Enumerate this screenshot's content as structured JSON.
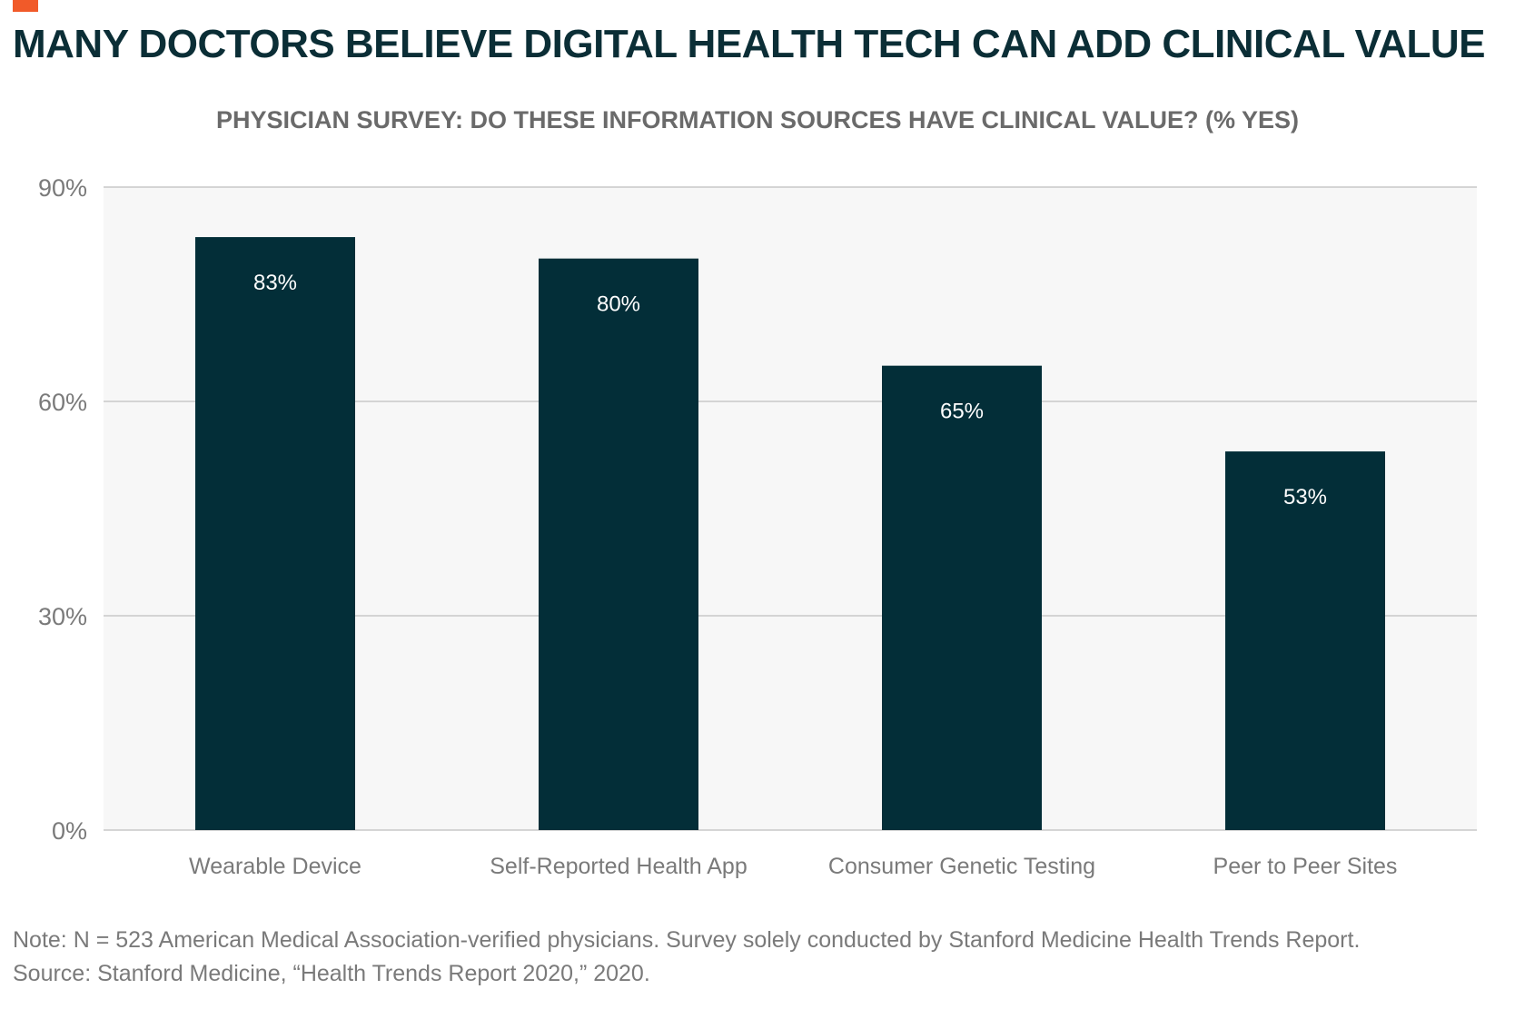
{
  "header": {
    "title": "MANY DOCTORS BELIEVE DIGITAL HEALTH TECH CAN ADD CLINICAL VALUE",
    "accent_color": "#f15a29"
  },
  "chart_data": {
    "type": "bar",
    "title": "PHYSICIAN SURVEY: DO THESE INFORMATION SOURCES HAVE CLINICAL VALUE? (% YES)",
    "categories": [
      "Wearable Device",
      "Self-Reported Health App",
      "Consumer Genetic Testing",
      "Peer to Peer Sites"
    ],
    "values": [
      83,
      80,
      65,
      53
    ],
    "value_labels": [
      "83%",
      "80%",
      "65%",
      "53%"
    ],
    "ylim": [
      0,
      90
    ],
    "yticks": [
      0,
      30,
      60,
      90
    ],
    "ytick_labels": [
      "0%",
      "30%",
      "60%",
      "90%"
    ],
    "xlabel": "",
    "ylabel": "",
    "grid": true,
    "bar_color": "#032e38",
    "plot_background": "#f7f7f7",
    "gridline_color": "#c8c8c8"
  },
  "footer": {
    "note": "Note: N = 523 American Medical Association-verified physicians. Survey solely conducted by Stanford Medicine Health Trends Report.",
    "source": "Source: Stanford Medicine, “Health Trends Report 2020,” 2020."
  }
}
